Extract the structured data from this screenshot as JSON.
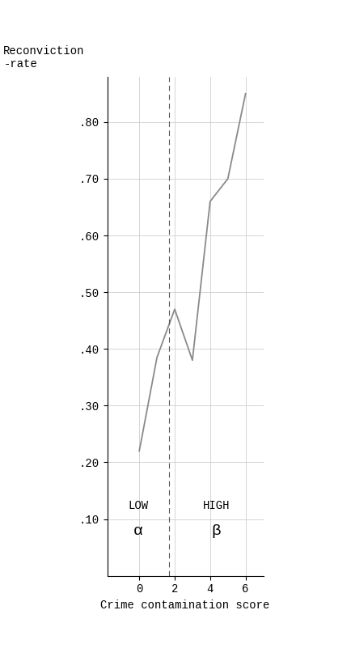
{
  "chart_data": {
    "type": "line",
    "y_label": "Reconviction\n-rate",
    "x_label": "Crime contamination score",
    "x": [
      0,
      1,
      2,
      3,
      4,
      5,
      6
    ],
    "values": [
      0.22,
      0.385,
      0.47,
      0.38,
      0.66,
      0.7,
      0.85
    ],
    "color": "#8a8a8a",
    "xlim": [
      -1.8,
      7.0
    ],
    "xticks": [
      0,
      2,
      4,
      6
    ],
    "ylim": [
      0,
      0.88
    ],
    "yticks": [
      {
        "value": 0.1,
        "label": ".10"
      },
      {
        "value": 0.2,
        "label": ".20"
      },
      {
        "value": 0.3,
        "label": ".30"
      },
      {
        "value": 0.4,
        "label": ".40"
      },
      {
        "value": 0.5,
        "label": ".50"
      },
      {
        "value": 0.6,
        "label": ".60"
      },
      {
        "value": 0.7,
        "label": ".70"
      },
      {
        "value": 0.8,
        "label": ".80"
      }
    ],
    "threshold": 1.7,
    "annotations": [
      "LOW",
      "α",
      "HIGH",
      "β"
    ],
    "grid": true
  }
}
